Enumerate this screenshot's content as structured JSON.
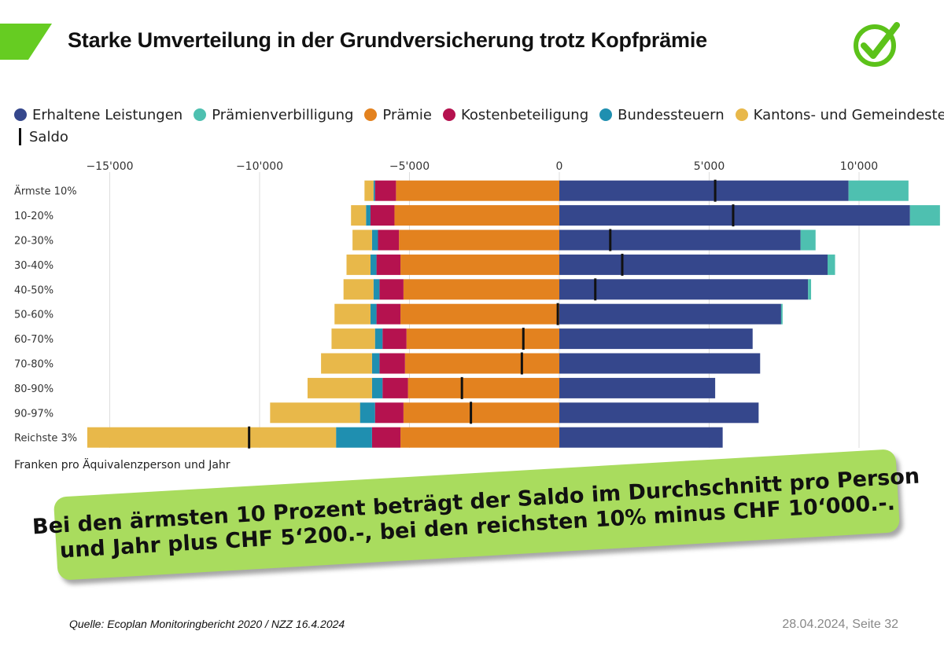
{
  "header": {
    "title": "Starke Umverteilung in der Grundversicherung trotz Kopfprämie"
  },
  "colors": {
    "accent_green": "#66cc22",
    "check_green": "#5cc21a",
    "callout_green": "#a9dc5e"
  },
  "icons": {
    "check": "check-circle-icon"
  },
  "chart_data": {
    "type": "bar",
    "orientation": "horizontal-stacked-diverging",
    "x_ticks": [
      -15000,
      -10000,
      -5000,
      0,
      5000,
      10000
    ],
    "x_tick_labels": [
      "−15'000",
      "−10'000",
      "−5'000",
      "0",
      "5'000",
      "10'000"
    ],
    "xlim": [
      -15500,
      12000
    ],
    "grid": true,
    "legend_position": "top",
    "legend": [
      {
        "label": "Erhaltene Leistungen",
        "color": "#35478c"
      },
      {
        "label": "Prämienverbilligung",
        "color": "#4ec0b0"
      },
      {
        "label": "Prämie",
        "color": "#e3821f"
      },
      {
        "label": "Kostenbeteiligung",
        "color": "#b5124f"
      },
      {
        "label": "Bundessteuern",
        "color": "#1f8fb0"
      },
      {
        "label": "Kantons- und Gemeindesteuern",
        "color": "#e8b84a"
      },
      {
        "label": "Saldo",
        "color": "#111111"
      }
    ],
    "categories": [
      "Ärmste 10%",
      "10-20%",
      "20-30%",
      "30-40%",
      "40-50%",
      "50-60%",
      "60-70%",
      "70-80%",
      "80-90%",
      "90-97%",
      "Reichste 3%"
    ],
    "series": [
      {
        "name": "Erhaltene Leistungen",
        "values": [
          9650,
          11700,
          8050,
          8950,
          8300,
          7400,
          6450,
          6700,
          5200,
          6650,
          5450
        ]
      },
      {
        "name": "Prämienverbilligung",
        "values": [
          2000,
          1000,
          500,
          250,
          100,
          50,
          0,
          0,
          0,
          0,
          0
        ]
      },
      {
        "name": "Prämie",
        "values": [
          -5450,
          -5500,
          -5350,
          -5300,
          -5200,
          -5300,
          -5100,
          -5150,
          -5050,
          -5200,
          -5300
        ]
      },
      {
        "name": "Kostenbeteiligung",
        "values": [
          -700,
          -800,
          -700,
          -800,
          -800,
          -800,
          -800,
          -850,
          -850,
          -950,
          -950
        ]
      },
      {
        "name": "Bundessteuern",
        "values": [
          -50,
          -150,
          -200,
          -200,
          -200,
          -200,
          -250,
          -250,
          -350,
          -500,
          -1200
        ]
      },
      {
        "name": "Kantons- und Gemeindesteuern",
        "values": [
          -300,
          -500,
          -650,
          -800,
          -1000,
          -1200,
          -1450,
          -1700,
          -2150,
          -3000,
          -8300
        ]
      }
    ],
    "saldo": [
      5200,
      5800,
      1700,
      2100,
      1200,
      -50,
      -1200,
      -1250,
      -3250,
      -2950,
      -10350
    ],
    "axis_caption": "Franken pro Äquivalenzperson und Jahr"
  },
  "callout": {
    "line1": "Bei den ärmsten 10 Prozent beträgt der Saldo im Durchschnitt pro Person",
    "line2": "und Jahr plus CHF 5‘200.-, bei den reichsten 10% minus CHF 10‘000.-."
  },
  "footer": {
    "source": "Quelle: Ecoplan Monitoringbericht 2020 / NZZ 16.4.2024",
    "date_page": "28.04.2024, Seite 32"
  }
}
